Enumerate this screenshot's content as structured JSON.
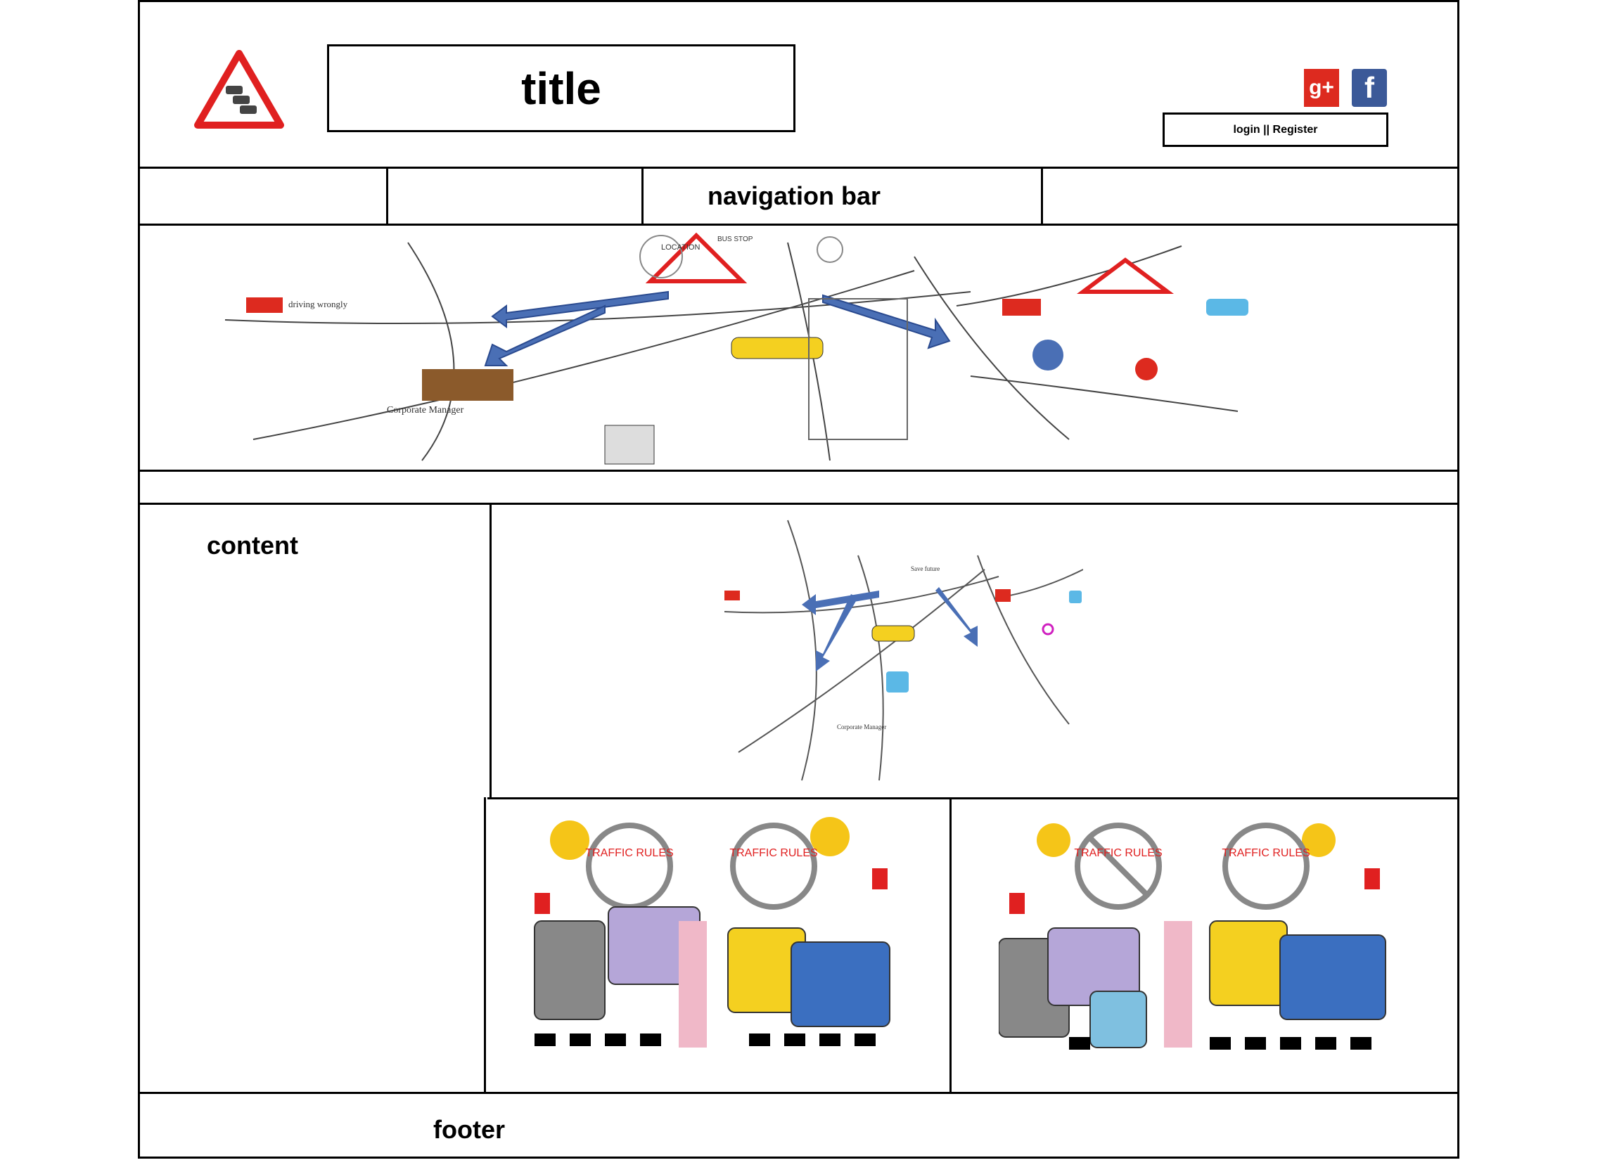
{
  "header": {
    "title": "title",
    "login_register": "login || Register",
    "social": [
      {
        "name": "google-plus",
        "label": "g+",
        "color": "#dd2a1f"
      },
      {
        "name": "facebook",
        "label": "f",
        "color": "#3b5998"
      }
    ]
  },
  "nav": {
    "label": "navigation bar"
  },
  "content": {
    "label": "content"
  },
  "footer": {
    "label": "footer"
  },
  "banner": {
    "texts": {
      "driving_wrongly": "driving wrongly",
      "corporate_manager": "Corporate Manager",
      "location": "LOCATION",
      "bus_stop": "BUS STOP",
      "save_future": "Save future"
    }
  },
  "panels": {
    "traffic_rules": "TRAFFIC RULES"
  },
  "colors": {
    "border": "#000000",
    "warning_red": "#e02020",
    "arrow_blue": "#4a6fb5"
  }
}
